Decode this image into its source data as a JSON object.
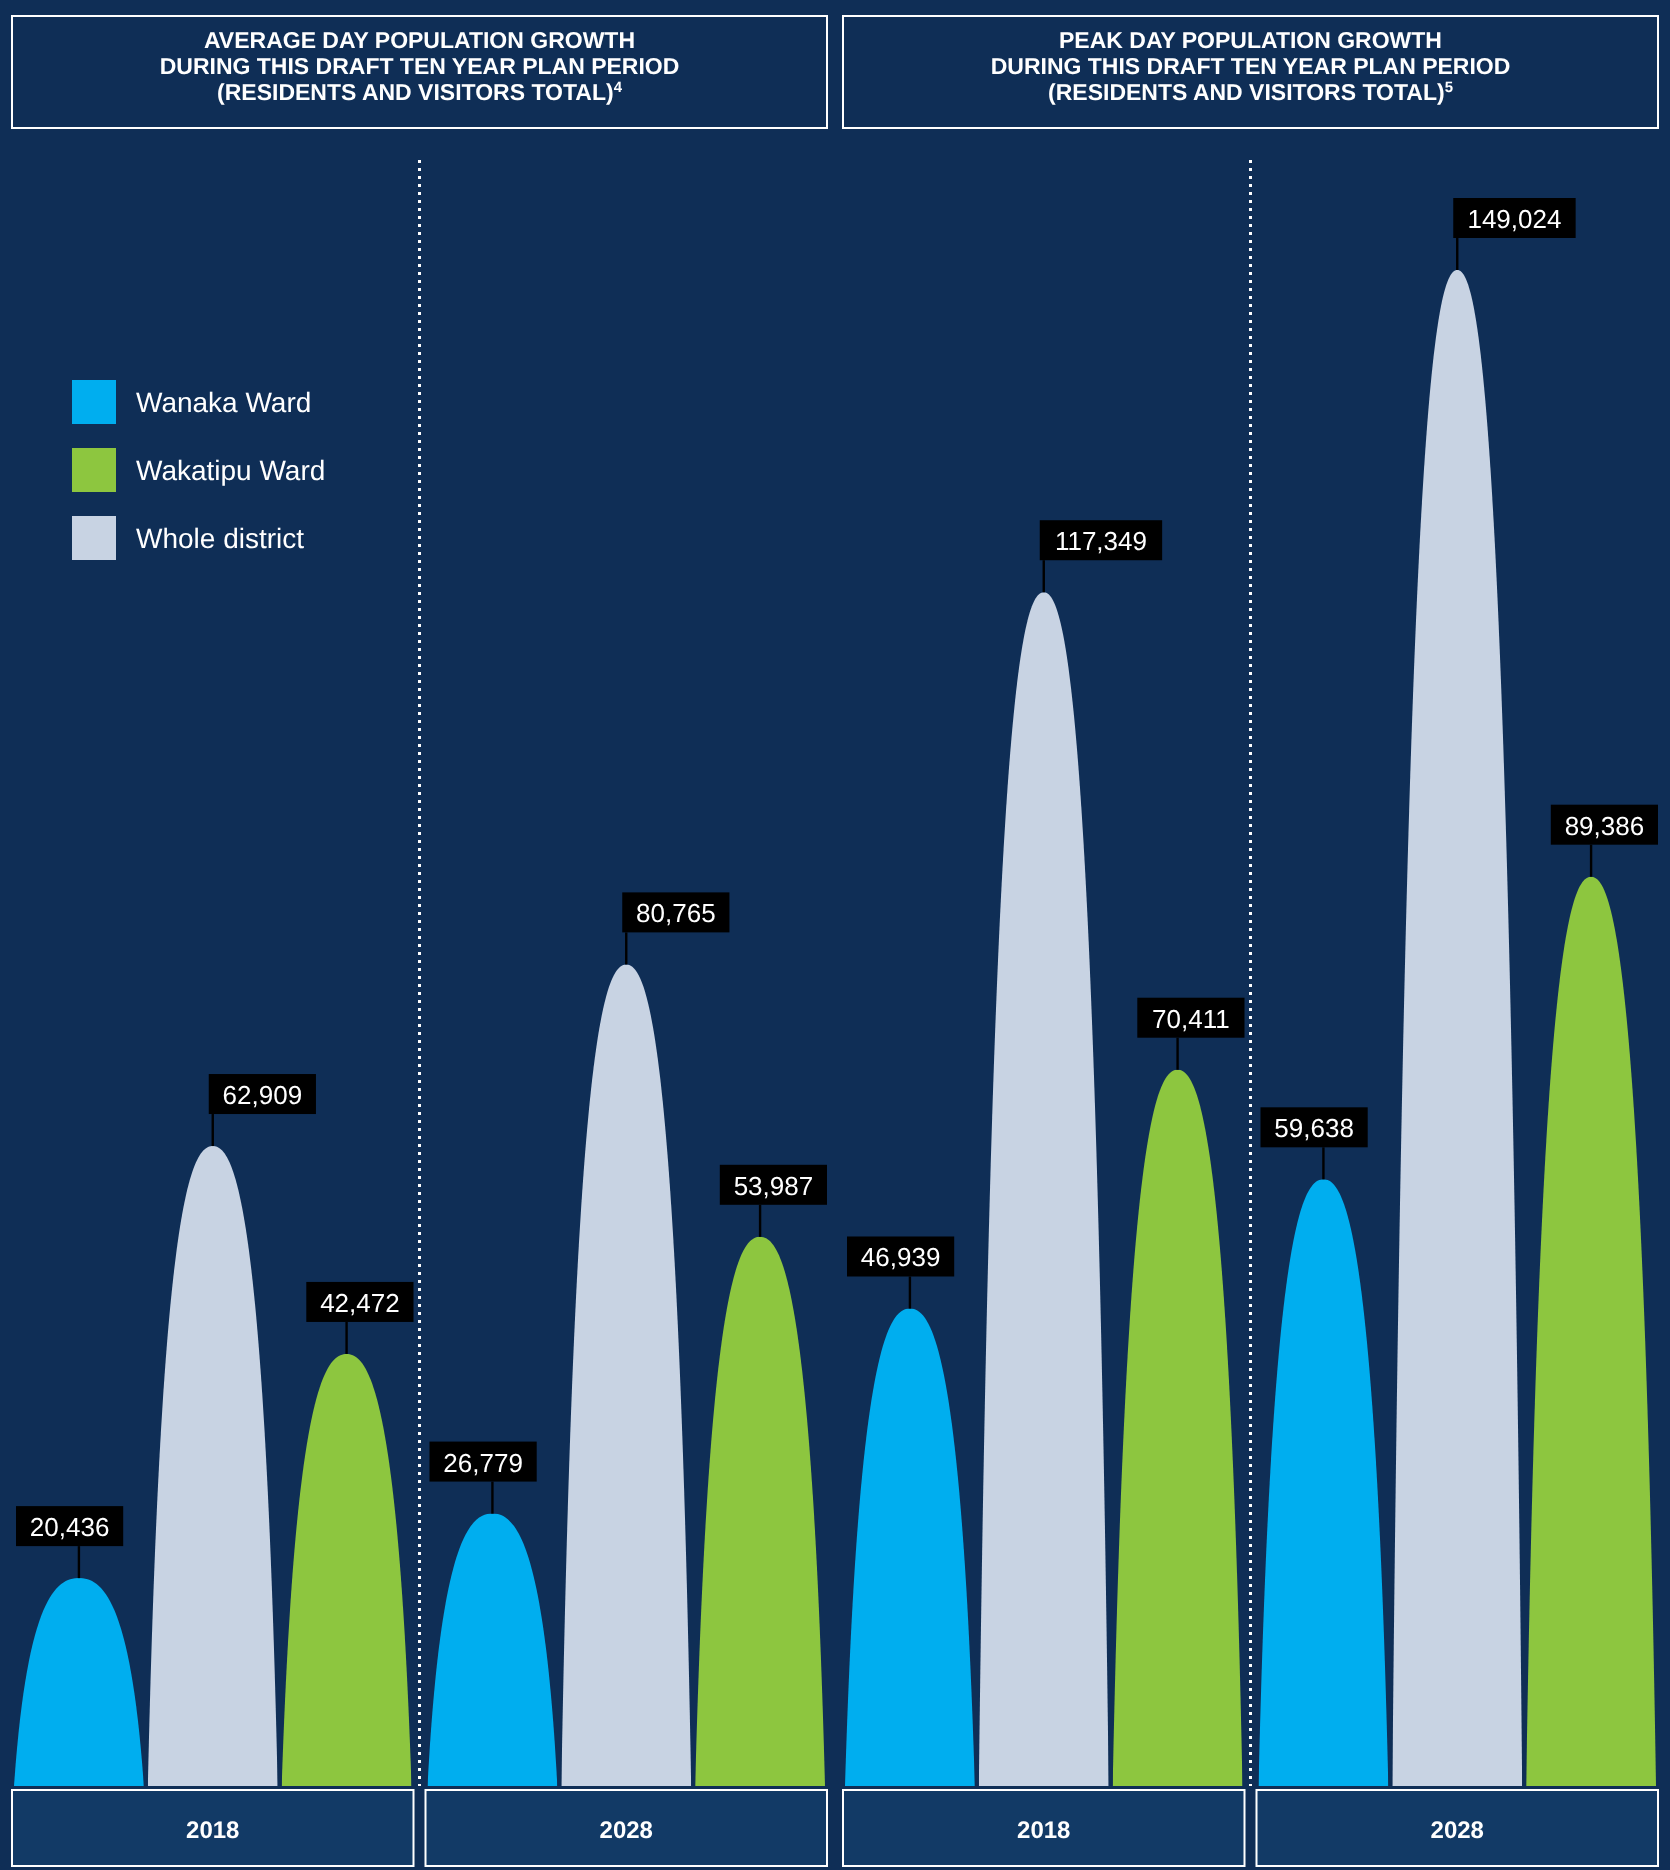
{
  "chart_data": [
    {
      "type": "bar",
      "title": "AVERAGE DAY POPULATION GROWTH\nDURING THIS DRAFT TEN YEAR PLAN PERIOD\n(RESIDENTS AND VISITORS TOTAL)$^{4}$",
      "categories": [
        "2018",
        "2028"
      ],
      "series": [
        {
          "name": "Wanaka Ward",
          "color": "#00aeef",
          "values": [
            20436,
            26779
          ],
          "value_labels": [
            "20,436",
            "26,779"
          ]
        },
        {
          "name": "Wakatipu Ward",
          "color": "#8dc63f",
          "values": [
            42472,
            53987
          ],
          "value_labels": [
            "42,472",
            "53,987"
          ]
        },
        {
          "name": "Whole district",
          "color": "#c8d3e3",
          "values": [
            62909,
            80765
          ],
          "value_labels": [
            "62,909",
            "80,765"
          ]
        }
      ],
      "legend": "top left"
    },
    {
      "type": "bar",
      "title": "PEAK DAY POPULATION GROWTH\nDURING THIS DRAFT TEN YEAR PLAN PERIOD\n(RESIDENTS AND VISITORS TOTAL)$^{5}$",
      "categories": [
        "2018",
        "2028"
      ],
      "series": [
        {
          "color": "#00aeef",
          "values": [
            46939,
            59638
          ],
          "value_labels": [
            "46,939",
            "59,638"
          ]
        },
        {
          "color": "#8dc63f",
          "values": [
            70411,
            89386
          ],
          "value_labels": [
            "70,411",
            "89,386"
          ]
        },
        {
          "color": "#c8d3e3",
          "values": [
            117349,
            149024
          ],
          "value_labels": [
            "117,349",
            "149,024"
          ]
        }
      ]
    }
  ]
}
